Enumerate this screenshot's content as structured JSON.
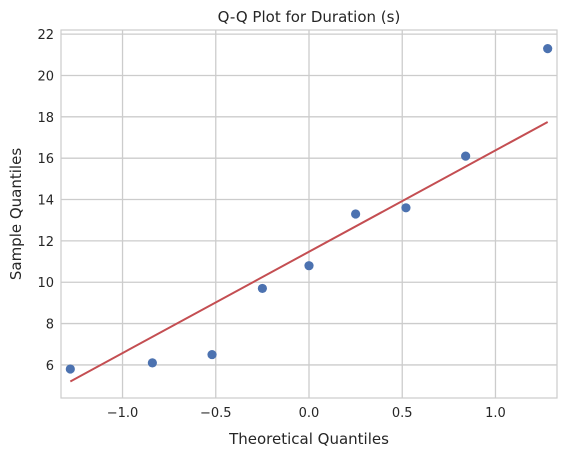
{
  "chart_data": {
    "type": "scatter",
    "title": "Q-Q Plot for Duration (s)",
    "xlabel": "Theoretical Quantiles",
    "ylabel": "Sample Quantiles",
    "xlim": [
      -1.33,
      1.33
    ],
    "ylim": [
      4.4,
      22.2
    ],
    "xticks": [
      -1.0,
      -0.5,
      0.0,
      0.5,
      1.0
    ],
    "xtick_labels": [
      "−1.0",
      "−0.5",
      "0.0",
      "0.5",
      "1.0"
    ],
    "yticks": [
      6,
      8,
      10,
      12,
      14,
      16,
      18,
      20,
      22
    ],
    "ytick_labels": [
      "6",
      "8",
      "10",
      "12",
      "14",
      "16",
      "18",
      "20",
      "22"
    ],
    "grid": true,
    "series": [
      {
        "kind": "points",
        "color": "#4c72b0",
        "x": [
          -1.28,
          -0.84,
          -0.52,
          -0.25,
          0.0,
          0.25,
          0.52,
          0.84,
          1.28
        ],
        "y": [
          5.8,
          6.1,
          6.5,
          9.7,
          10.8,
          13.3,
          13.6,
          16.1,
          21.3
        ]
      },
      {
        "kind": "reference-line",
        "color": "#c44e52",
        "x": [
          -1.28,
          1.28
        ],
        "y": [
          5.2,
          17.75
        ]
      }
    ]
  }
}
